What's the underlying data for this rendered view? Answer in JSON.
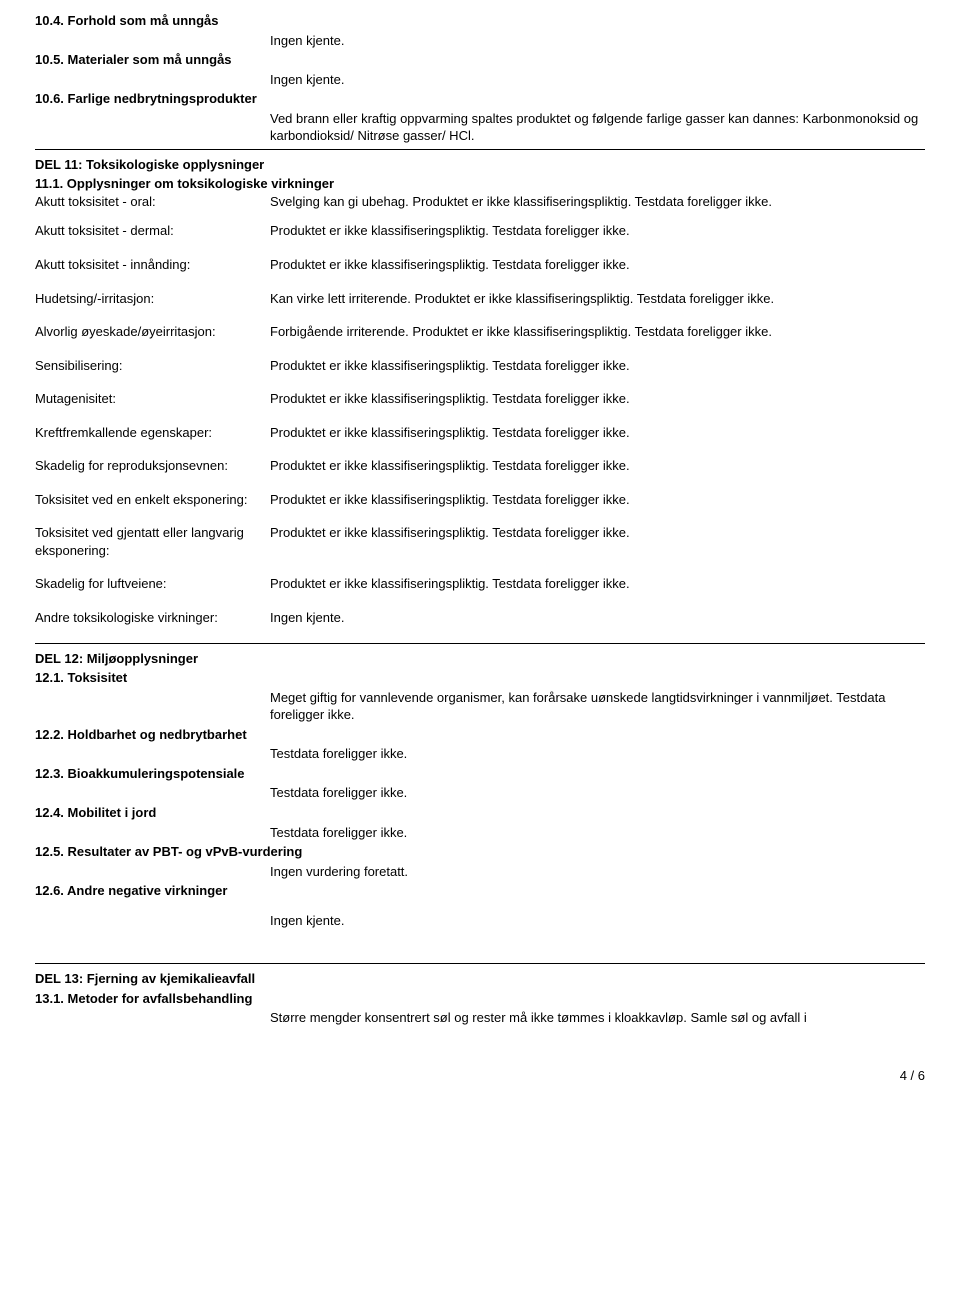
{
  "section10": {
    "s104": {
      "heading": "10.4. Forhold som må unngås",
      "value": "Ingen kjente."
    },
    "s105": {
      "heading": "10.5. Materialer som må unngås",
      "value": "Ingen kjente."
    },
    "s106": {
      "heading": "10.6. Farlige nedbrytningsprodukter",
      "value": "Ved brann eller kraftig oppvarming spaltes produktet og følgende farlige gasser kan dannes: Karbonmonoksid og karbondioksid/  Nitrøse gasser/  HCl."
    }
  },
  "section11": {
    "title": "DEL 11: Toksikologiske opplysninger",
    "sub": "11.1. Opplysninger om toksikologiske virkninger",
    "rows": {
      "r0": {
        "label": "Akutt toksisitet - oral:",
        "value": "Svelging kan gi ubehag.  Produktet er ikke klassifiseringspliktig.  Testdata foreligger ikke."
      },
      "r1": {
        "label": "Akutt toksisitet - dermal:",
        "value": "Produktet er ikke klassifiseringspliktig.  Testdata foreligger ikke."
      },
      "r2": {
        "label": "Akutt toksisitet - innånding:",
        "value": "Produktet er ikke klassifiseringspliktig.  Testdata foreligger ikke."
      },
      "r3": {
        "label": "Hudetsing/-irritasjon:",
        "value": "Kan virke lett irriterende.  Produktet er ikke klassifiseringspliktig.  Testdata foreligger ikke."
      },
      "r4": {
        "label": "Alvorlig øyeskade/øyeirritasjon:",
        "value": "Forbigående irriterende.  Produktet er ikke klassifiseringspliktig.  Testdata foreligger ikke."
      },
      "r5": {
        "label": "Sensibilisering:",
        "value": "Produktet er ikke klassifiseringspliktig.  Testdata foreligger ikke."
      },
      "r6": {
        "label": "Mutagenisitet:",
        "value": "Produktet er ikke klassifiseringspliktig.  Testdata foreligger ikke."
      },
      "r7": {
        "label": "Kreftfremkallende egenskaper:",
        "value": "Produktet er ikke klassifiseringspliktig.  Testdata foreligger ikke."
      },
      "r8": {
        "label": "Skadelig for reproduksjonsevnen:",
        "value": "Produktet er ikke klassifiseringspliktig.  Testdata foreligger ikke."
      },
      "r9": {
        "label": "Toksisitet ved en enkelt eksponering:",
        "value": "Produktet er ikke klassifiseringspliktig.  Testdata foreligger ikke."
      },
      "r10": {
        "label": "Toksisitet ved gjentatt eller langvarig eksponering:",
        "value": "Produktet er ikke klassifiseringspliktig.  Testdata foreligger ikke."
      },
      "r11": {
        "label": "Skadelig for luftveiene:",
        "value": "Produktet er ikke klassifiseringspliktig.  Testdata foreligger ikke."
      },
      "r12": {
        "label": "Andre toksikologiske virkninger:",
        "value": "Ingen kjente."
      }
    }
  },
  "section12": {
    "title": "DEL 12: Miljøopplysninger",
    "s121": {
      "heading": "12.1. Toksisitet",
      "value": "Meget giftig for vannlevende organismer, kan forårsake uønskede langtidsvirkninger i vannmiljøet.  Testdata foreligger ikke."
    },
    "s122": {
      "heading": "12.2. Holdbarhet og nedbrytbarhet",
      "value": "Testdata foreligger ikke."
    },
    "s123": {
      "heading": "12.3. Bioakkumuleringspotensiale",
      "value": "Testdata foreligger ikke."
    },
    "s124": {
      "heading": "12.4. Mobilitet i jord",
      "value": "Testdata foreligger ikke."
    },
    "s125": {
      "heading": "12.5. Resultater av PBT- og vPvB-vurdering",
      "value": "Ingen vurdering foretatt."
    },
    "s126": {
      "heading": "12.6. Andre negative virkninger",
      "value": "Ingen kjente."
    }
  },
  "section13": {
    "title": "DEL 13: Fjerning av kjemikalieavfall",
    "sub": "13.1. Metoder for avfallsbehandling",
    "value": "Større mengder konsentrert søl og rester må ikke tømmes i kloakkavløp.  Samle søl og avfall i"
  },
  "footer": {
    "page": "4 / 6"
  }
}
